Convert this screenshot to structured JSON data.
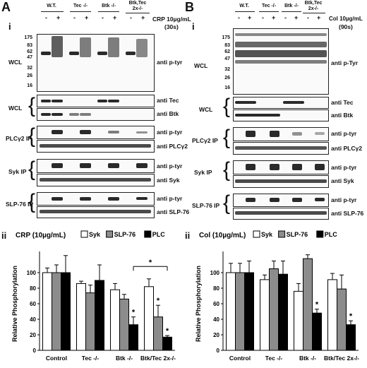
{
  "panelA": {
    "letter": "A",
    "sub_i": "i",
    "sub_ii": "ii",
    "groups": [
      "W.T.",
      "Tec -/-",
      "Btk -/-",
      "Btk,Tec",
      "2x-/-"
    ],
    "signs": [
      "-",
      "+",
      "-",
      "+",
      "-",
      "+",
      "-",
      "+"
    ],
    "stim_line1": "CRP 10µg/mL",
    "stim_line2": "(30s)",
    "mw": [
      "175",
      "83",
      "62",
      "47",
      "32",
      "26",
      "16"
    ],
    "wcl1": "WCL",
    "wcl2": "WCL",
    "plc_ip": "PLCγ2 IP",
    "syk_ip": "Syk IP",
    "slp_ip": "SLP-76 IP",
    "blot_labels": [
      "anti p-tyr",
      "anti Tec",
      "anti Btk",
      "anti p-tyr",
      "anti PLCγ2",
      "anti p-tyr",
      "anti Syk",
      "anti p-tyr",
      "anti SLP-76"
    ],
    "chart_title": "CRP (10µg/mL)"
  },
  "panelB": {
    "letter": "B",
    "sub_i": "i",
    "sub_ii": "ii",
    "groups": [
      "W.T.",
      "Tec -/-",
      "Btk -/-",
      "Btk,Tec",
      "2x-/-"
    ],
    "signs": [
      "-",
      "+",
      "-",
      "+",
      "-",
      "+",
      "-",
      "+"
    ],
    "stim_line1": "Col 10µg/mL",
    "stim_line2": "(90s)",
    "mw": [
      "175",
      "83",
      "62",
      "47",
      "32",
      "26",
      "16"
    ],
    "wcl1": "WCL",
    "wcl2": "WCL",
    "plc_ip": "PLCγ2 IP",
    "syk_ip": "Syk IP",
    "slp_ip": "SLP-76 IP",
    "blot_labels": [
      "anti p-Tyr",
      "anti Tec",
      "anti Btk",
      "anti p-tyr",
      "anti PLCγ2",
      "anti p-tyr",
      "anti Syk",
      "anti p-tyr",
      "anti SLP-76"
    ],
    "chart_title": "Col (10µg/mL)"
  },
  "chart_data": [
    {
      "type": "bar",
      "title": "CRP (10µg/mL)",
      "ylabel": "Relative Phosphorylation",
      "xlabel": "",
      "categories": [
        "Control",
        "Tec -/-",
        "Btk -/-",
        "Btk/Tec 2x-/-"
      ],
      "ylim": [
        0,
        120
      ],
      "yticks": [
        0,
        20,
        40,
        60,
        80,
        100
      ],
      "legend": [
        "Syk",
        "SLP-76",
        "PLC"
      ],
      "series": [
        {
          "name": "Syk",
          "color": "#ffffff",
          "values": [
            100,
            86,
            78,
            82
          ],
          "err": [
            6,
            3,
            8,
            10
          ]
        },
        {
          "name": "SLP-76",
          "color": "#8c8c8c",
          "values": [
            100,
            74,
            66,
            43
          ],
          "err": [
            10,
            10,
            6,
            15
          ]
        },
        {
          "name": "PLC",
          "color": "#000000",
          "values": [
            100,
            90,
            33,
            17
          ],
          "err": [
            22,
            20,
            10,
            2
          ]
        }
      ],
      "stars": [
        "*",
        "*",
        "*",
        "*",
        "*"
      ]
    },
    {
      "type": "bar",
      "title": "Col (10µg/mL)",
      "ylabel": "Relative Phosphorylation",
      "xlabel": "",
      "categories": [
        "Control",
        "Tec -/-",
        "Btk -/-",
        "Btk/Tec 2x-/-"
      ],
      "ylim": [
        0,
        120
      ],
      "yticks": [
        0,
        20,
        40,
        60,
        80,
        100
      ],
      "legend": [
        "Syk",
        "SLP-76",
        "PLC"
      ],
      "series": [
        {
          "name": "Syk",
          "color": "#ffffff",
          "values": [
            100,
            91,
            76,
            91
          ],
          "err": [
            12,
            6,
            10,
            8
          ]
        },
        {
          "name": "SLP-76",
          "color": "#8c8c8c",
          "values": [
            100,
            105,
            118,
            79
          ],
          "err": [
            12,
            10,
            5,
            18
          ]
        },
        {
          "name": "PLC",
          "color": "#000000",
          "values": [
            100,
            98,
            48,
            33
          ],
          "err": [
            15,
            17,
            5,
            5
          ]
        }
      ],
      "stars": [
        "*",
        "*"
      ]
    }
  ]
}
